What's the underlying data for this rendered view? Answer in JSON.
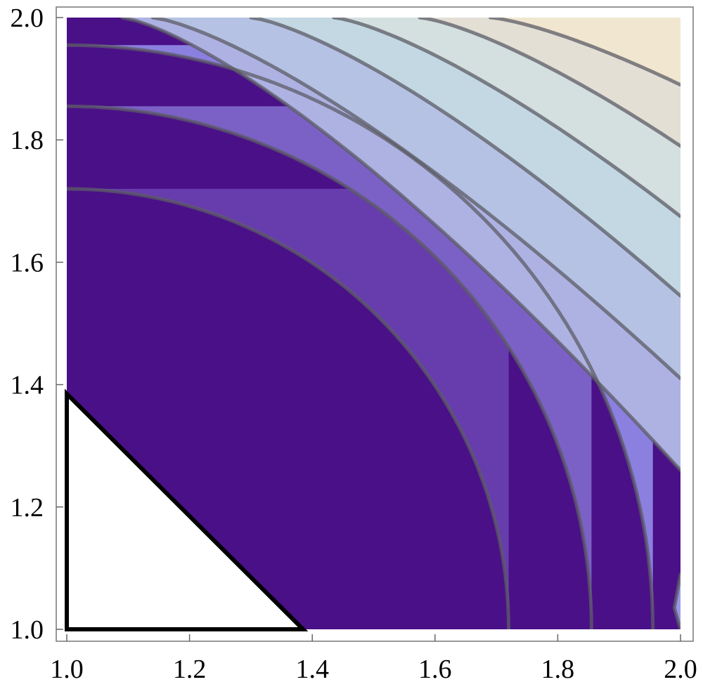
{
  "chart_data": {
    "type": "contour",
    "title": "",
    "xlabel": "",
    "ylabel": "",
    "xlim": [
      1.0,
      2.0
    ],
    "ylim": [
      1.0,
      2.0
    ],
    "x_ticks": [
      "1.0",
      "1.2",
      "1.4",
      "1.6",
      "1.8",
      "2.0"
    ],
    "y_ticks": [
      "1.0",
      "1.2",
      "1.4",
      "1.6",
      "1.8",
      "2.0"
    ],
    "grid": false,
    "legend": "none",
    "contour_lines": [
      {
        "level": 1,
        "x_intercept": 1.72,
        "y_intercept": 1.72
      },
      {
        "level": 2,
        "x_intercept": 1.855,
        "y_intercept": 1.855
      },
      {
        "level": 3,
        "x_intercept": 1.955,
        "y_intercept": 1.955
      },
      {
        "level": 4,
        "x_at_bottom": 2.0,
        "y_at_right": 1.09
      },
      {
        "level": 5,
        "x_at_top": 1.09,
        "y_at_right": 1.26
      },
      {
        "level": 6,
        "x_at_top": 1.14,
        "y_at_right": 1.41
      },
      {
        "level": 7,
        "x_at_top": 1.3,
        "y_at_right": 1.545
      },
      {
        "level": 8,
        "x_at_top": 1.435,
        "y_at_right": 1.675
      },
      {
        "level": 9,
        "x_at_top": 1.575,
        "y_at_right": 1.79
      },
      {
        "level": 10,
        "x_at_top": 1.69,
        "y_at_right": 1.89
      }
    ],
    "band_colors": [
      "#4a1088",
      "#673dad",
      "#7b61c6",
      "#8b80e0",
      "#9b97ea",
      "#aeb2e3",
      "#b5c2e4",
      "#c3d8e3",
      "#d4dfe0",
      "#e3dfd5",
      "#f1e6d0"
    ],
    "contour_line_color": "#5c5c66",
    "excluded_region": {
      "shape": "triangle",
      "vertices": [
        [
          1.0,
          1.0
        ],
        [
          1.385,
          1.0
        ],
        [
          1.0,
          1.385
        ]
      ],
      "fill": "#ffffff",
      "outline": "#000000"
    }
  }
}
